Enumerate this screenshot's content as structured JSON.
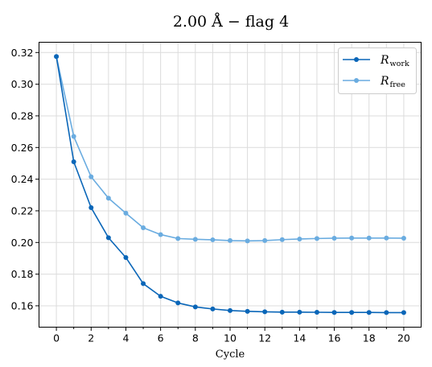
{
  "chart_data": {
    "type": "line",
    "title": "2.00 Å  −  flag 4",
    "xlabel": "Cycle",
    "ylabel": "",
    "xlim": [
      -1,
      21
    ],
    "ylim": [
      0.1465,
      0.3265
    ],
    "xticks": [
      0,
      2,
      4,
      6,
      8,
      10,
      12,
      14,
      16,
      18,
      20
    ],
    "xticks_minor": [
      1,
      3,
      5,
      7,
      9,
      11,
      13,
      15,
      17,
      19
    ],
    "yticks": [
      0.16,
      0.18,
      0.2,
      0.22,
      0.24,
      0.26,
      0.28,
      0.3,
      0.32
    ],
    "grid": true,
    "legend_position": "top-right",
    "x": [
      0,
      1,
      2,
      3,
      4,
      5,
      6,
      7,
      8,
      9,
      10,
      11,
      12,
      13,
      14,
      15,
      16,
      17,
      18,
      19,
      20
    ],
    "series": [
      {
        "name": "R_work",
        "legend_main": "R",
        "legend_sub": "work",
        "color": "#0a66b8",
        "values": [
          0.3175,
          0.251,
          0.222,
          0.203,
          0.1905,
          0.174,
          0.166,
          0.1618,
          0.1593,
          0.158,
          0.157,
          0.1565,
          0.1562,
          0.156,
          0.156,
          0.1559,
          0.1558,
          0.1558,
          0.1558,
          0.1557,
          0.1557
        ]
      },
      {
        "name": "R_free",
        "legend_main": "R",
        "legend_sub": "free",
        "color": "#6aace0",
        "values": [
          0.3175,
          0.267,
          0.2415,
          0.228,
          0.2185,
          0.2093,
          0.205,
          0.2025,
          0.202,
          0.2017,
          0.2012,
          0.201,
          0.2012,
          0.2018,
          0.2022,
          0.2025,
          0.2027,
          0.2028,
          0.2028,
          0.2028,
          0.2027
        ]
      }
    ]
  }
}
